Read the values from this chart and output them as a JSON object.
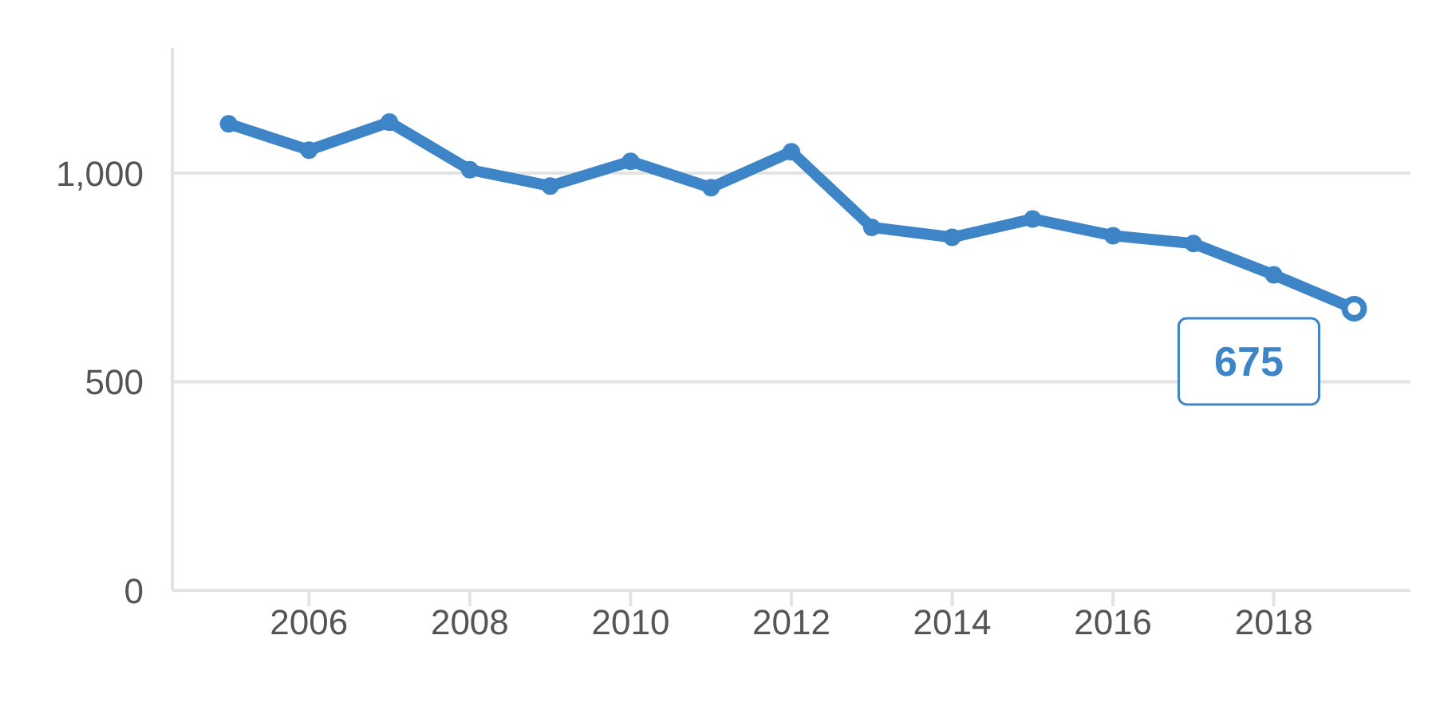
{
  "chart_data": {
    "type": "line",
    "x": [
      2005,
      2006,
      2007,
      2008,
      2009,
      2010,
      2011,
      2012,
      2013,
      2014,
      2015,
      2016,
      2017,
      2018,
      2019
    ],
    "series": [
      {
        "color": "#3d85c6",
        "values": [
          1118,
          1055,
          1122,
          1008,
          969,
          1028,
          965,
          1051,
          870,
          846,
          890,
          850,
          831,
          756,
          675
        ],
        "value_labels": [
          null,
          null,
          null,
          null,
          null,
          null,
          null,
          null,
          null,
          null,
          null,
          null,
          null,
          null,
          "675"
        ]
      }
    ],
    "xlim": [
      2004.3,
      2019.7
    ],
    "xticks": [
      2006,
      2008,
      2010,
      2012,
      2014,
      2016,
      2018
    ],
    "ylim": [
      0,
      1300
    ],
    "yticks": [
      0,
      500,
      {
        "value": 1000,
        "label": "1,000"
      }
    ],
    "grid": "y",
    "marker": "circle",
    "line_style": "solid"
  }
}
